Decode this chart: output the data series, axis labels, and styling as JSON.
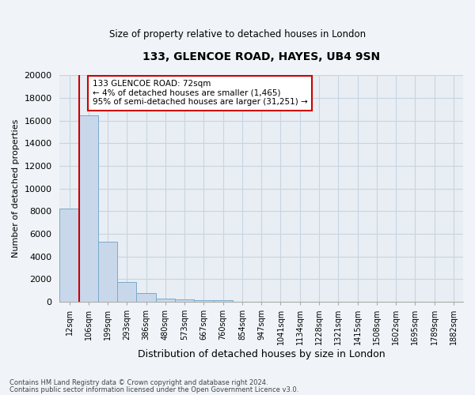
{
  "title": "133, GLENCOE ROAD, HAYES, UB4 9SN",
  "subtitle": "Size of property relative to detached houses in London",
  "xlabel": "Distribution of detached houses by size in London",
  "ylabel": "Number of detached properties",
  "bar_labels": [
    "12sqm",
    "106sqm",
    "199sqm",
    "293sqm",
    "386sqm",
    "480sqm",
    "573sqm",
    "667sqm",
    "760sqm",
    "854sqm",
    "947sqm",
    "1041sqm",
    "1134sqm",
    "1228sqm",
    "1321sqm",
    "1415sqm",
    "1508sqm",
    "1602sqm",
    "1695sqm",
    "1789sqm",
    "1882sqm"
  ],
  "bar_values": [
    8200,
    16500,
    5300,
    1750,
    750,
    300,
    200,
    100,
    100,
    0,
    0,
    0,
    0,
    0,
    0,
    0,
    0,
    0,
    0,
    0,
    0
  ],
  "bar_color": "#c8d8ea",
  "bar_edge_color": "#7aaaca",
  "highlight_color": "#cc0000",
  "ylim": [
    0,
    20000
  ],
  "yticks": [
    0,
    2000,
    4000,
    6000,
    8000,
    10000,
    12000,
    14000,
    16000,
    18000,
    20000
  ],
  "annotation_title": "133 GLENCOE ROAD: 72sqm",
  "annotation_line1": "← 4% of detached houses are smaller (1,465)",
  "annotation_line2": "95% of semi-detached houses are larger (31,251) →",
  "annotation_box_color": "#ffffff",
  "annotation_box_edge": "#cc0000",
  "vline_x": 0.5,
  "footer1": "Contains HM Land Registry data © Crown copyright and database right 2024.",
  "footer2": "Contains public sector information licensed under the Open Government Licence v3.0.",
  "grid_color": "#c8d4e0",
  "bg_color": "#e8eef4",
  "fig_bg_color": "#f0f4f8"
}
